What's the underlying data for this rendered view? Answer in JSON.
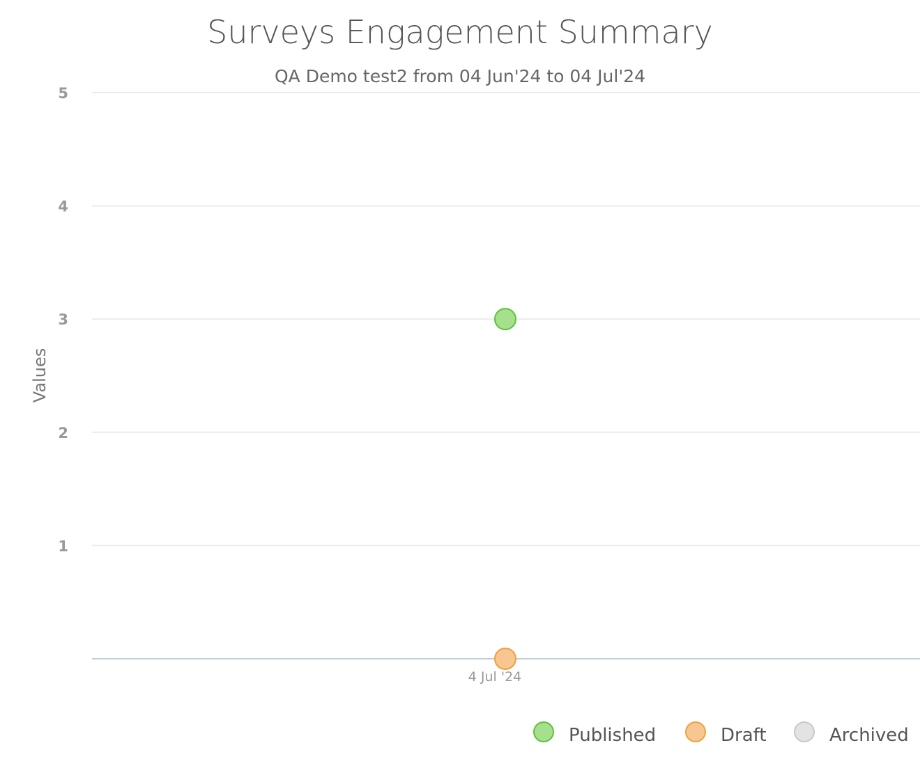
{
  "chart_data": {
    "type": "scatter",
    "title": "Surveys Engagement Summary",
    "subtitle": "QA Demo test2 from 04 Jun'24 to 04 Jul'24",
    "ylabel": "Values",
    "xlabel": "",
    "ylim": [
      0,
      5
    ],
    "yticks": [
      1,
      2,
      3,
      4,
      5
    ],
    "categories": [
      "4 Jul '24"
    ],
    "grid": true,
    "legend_position": "bottom-right",
    "series": [
      {
        "name": "Published",
        "values": [
          3
        ],
        "fill": "#a6e08c",
        "stroke": "#5cc23a"
      },
      {
        "name": "Draft",
        "values": [
          0
        ],
        "fill": "#f8c690",
        "stroke": "#f0a040"
      },
      {
        "name": "Archived",
        "values": [],
        "fill": "#e3e3e3",
        "stroke": "#c8c8c8"
      }
    ]
  },
  "colors": {
    "grid": "#ececec",
    "axis_line": "#c0ccd6"
  }
}
